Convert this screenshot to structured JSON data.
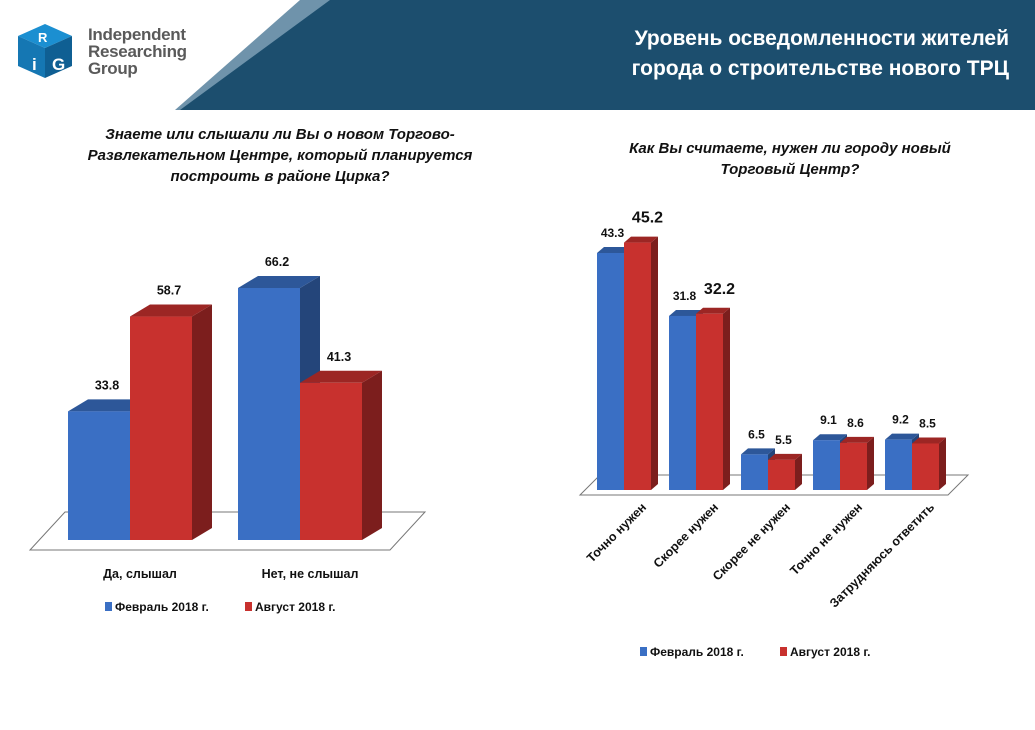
{
  "header": {
    "brand_lines": [
      "Independent",
      "Researching",
      "Group"
    ],
    "logo_letters": [
      "i",
      "R",
      "G"
    ],
    "title": "Уровень осведомленности жителей города о строительстве нового ТРЦ",
    "colors": {
      "band": "#1c4e6e",
      "band_light": "#6f93ab",
      "logo_blue": "#1b8fd1"
    }
  },
  "chart_data": [
    {
      "type": "bar",
      "title": "Знаете или слышали ли Вы о новом Торгово-Развлекательном Центре, который планируется построить в районе Цирка?",
      "categories": [
        "Да, слышал",
        "Нет, не слышал"
      ],
      "series": [
        {
          "name": "Февраль 2018 г.",
          "color": "#3a6fc4",
          "values": [
            33.8,
            66.2
          ]
        },
        {
          "name": "Август 2018 г.",
          "color": "#c8312e",
          "values": [
            58.7,
            41.3
          ]
        }
      ],
      "ylim": [
        0,
        70
      ],
      "grid": false,
      "legend": "bottom",
      "style": "3d"
    },
    {
      "type": "bar",
      "title": "Как Вы считаете, нужен ли городу новый Торговый Центр?",
      "categories": [
        "Точно нужен",
        "Скорее нужен",
        "Скорее не нужен",
        "Точно не нужен",
        "Затрудняюсь ответить"
      ],
      "series": [
        {
          "name": "Февраль 2018 г.",
          "color": "#3a6fc4",
          "values": [
            43.3,
            31.8,
            6.5,
            9.1,
            9.2
          ]
        },
        {
          "name": "Август 2018 г.",
          "color": "#c8312e",
          "values": [
            45.2,
            32.2,
            5.5,
            8.6,
            8.5
          ]
        }
      ],
      "ylim": [
        0,
        50
      ],
      "grid": false,
      "legend": "bottom",
      "style": "3d"
    }
  ]
}
